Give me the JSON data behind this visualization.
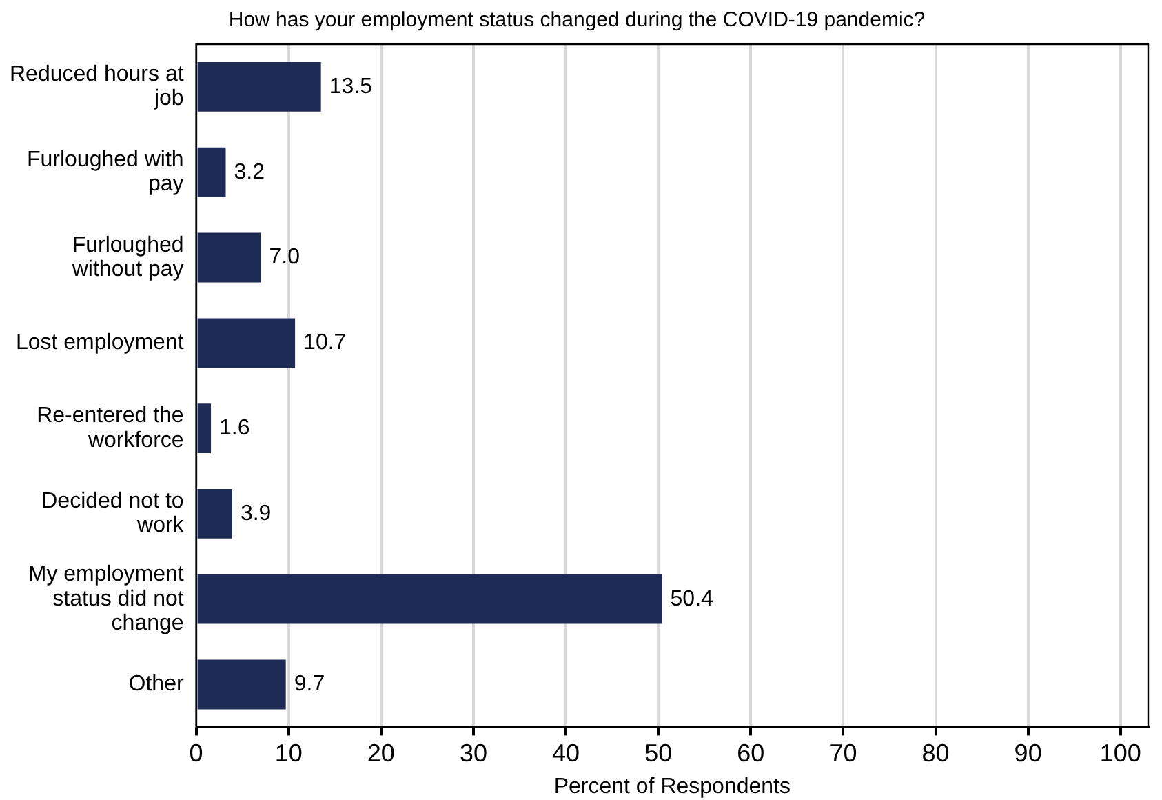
{
  "chart_data": {
    "type": "bar",
    "orientation": "horizontal",
    "title": "How has your employment status changed during the COVID-19 pandemic?",
    "xlabel": "Percent of Respondents",
    "categories": [
      "Reduced hours at job",
      "Furloughed with pay",
      "Furloughed without pay",
      "Lost employment",
      "Re-entered the workforce",
      "Decided not to work",
      "My employment status did not change",
      "Other"
    ],
    "values": [
      13.5,
      3.2,
      7.0,
      10.7,
      1.6,
      3.9,
      50.4,
      9.7
    ],
    "value_labels": [
      "13.5",
      "3.2",
      "7.0",
      "10.7",
      "1.6",
      "3.9",
      "50.4",
      "9.7"
    ],
    "color": "#1f2b57",
    "xlim": [
      0,
      103
    ],
    "xticks": [
      0,
      10,
      20,
      30,
      40,
      50,
      60,
      70,
      80,
      90,
      100
    ],
    "grid": "x",
    "legend": false
  }
}
